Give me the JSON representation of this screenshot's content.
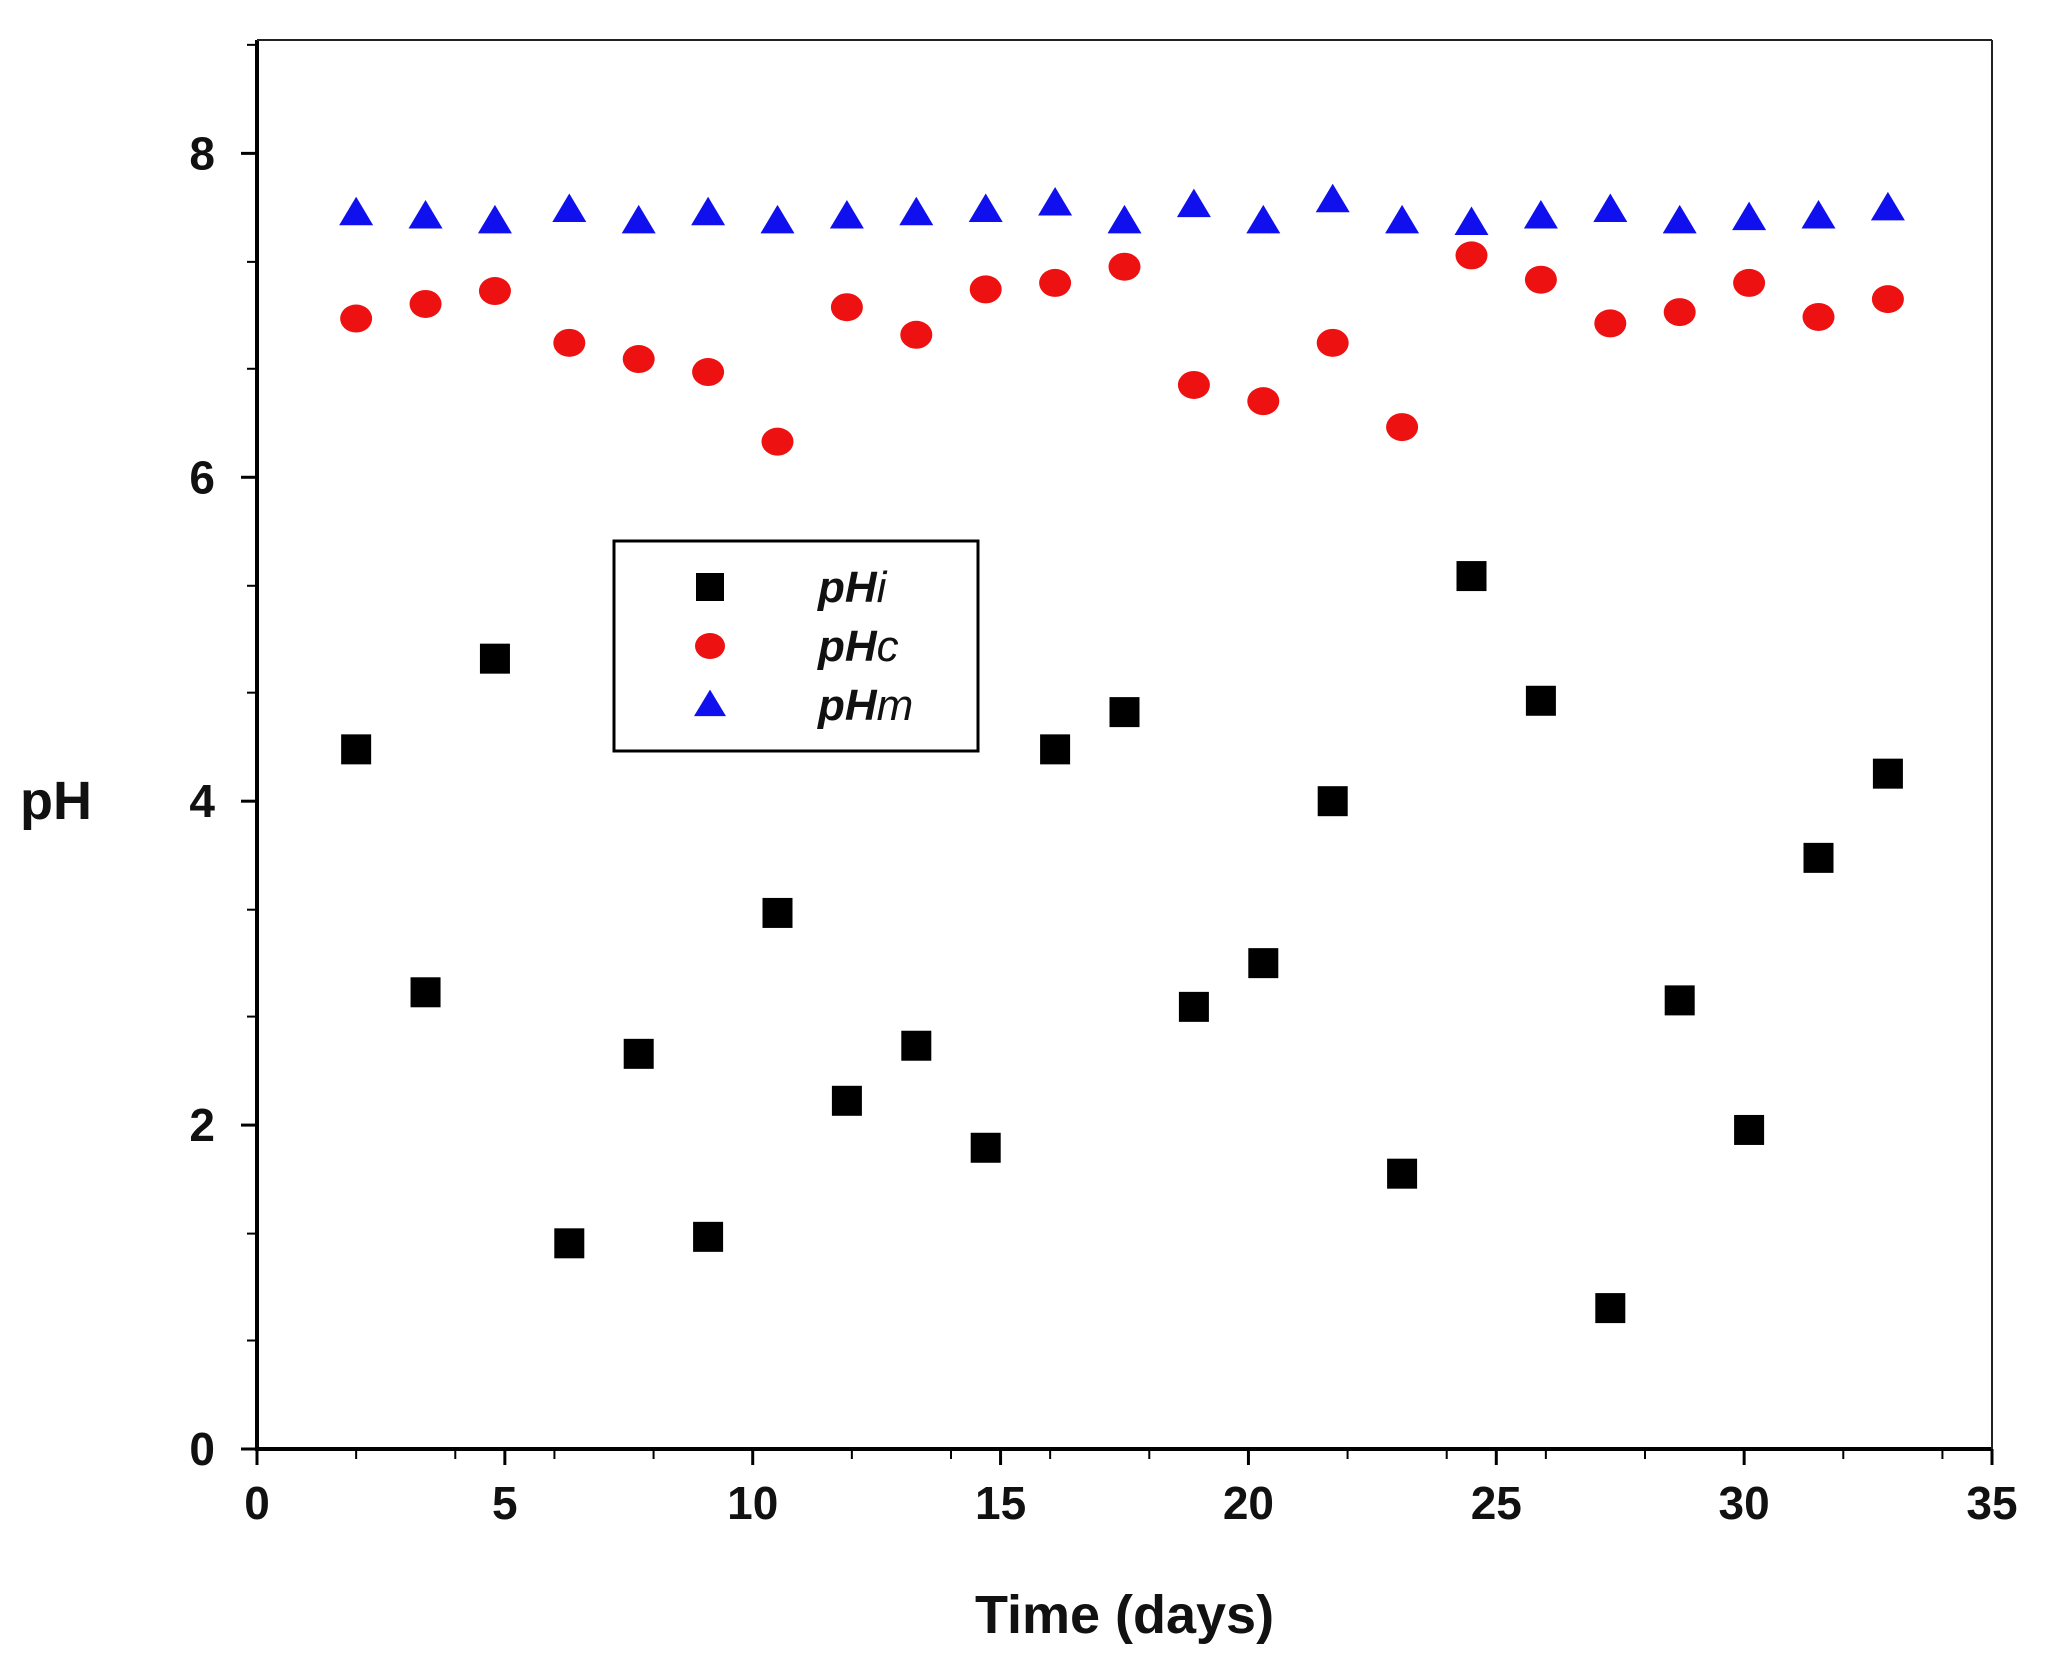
{
  "chart_data": {
    "type": "scatter",
    "title": "",
    "xlabel": "Time (days)",
    "ylabel": "pH",
    "xlim": [
      0,
      35
    ],
    "ylim": [
      0,
      8.7
    ],
    "xticks": [
      0,
      5,
      10,
      15,
      20,
      25,
      30,
      35
    ],
    "yticks": [
      0,
      2,
      4,
      6,
      8
    ],
    "x_minor_ticks": [
      2,
      4,
      6,
      8,
      10,
      12,
      14,
      16,
      18,
      20,
      22,
      24,
      26,
      28,
      30,
      32,
      34
    ],
    "y_minor_ticks": [
      0.67,
      1.33,
      2.67,
      3.33,
      4.67,
      5.33,
      6.67,
      7.33,
      8.67
    ],
    "grid": false,
    "legend_position": "center-left",
    "series": [
      {
        "name": "pHi",
        "name_main": "pH",
        "name_sub": "i",
        "marker": "square",
        "color": "#000000",
        "x": [
          2.0,
          3.4,
          4.8,
          6.3,
          7.7,
          9.1,
          10.5,
          11.9,
          13.3,
          14.7,
          16.1,
          17.5,
          18.9,
          20.3,
          21.7,
          23.1,
          24.5,
          25.9,
          27.3,
          28.7,
          30.1,
          31.5,
          32.9
        ],
        "values": [
          4.32,
          2.82,
          4.88,
          1.27,
          2.44,
          1.31,
          3.31,
          2.15,
          2.49,
          1.86,
          4.32,
          4.55,
          2.73,
          3.0,
          4.0,
          1.7,
          5.39,
          4.62,
          0.87,
          2.77,
          1.97,
          3.65,
          4.17
        ]
      },
      {
        "name": "pHc",
        "name_main": "pH",
        "name_sub": "c",
        "marker": "circle",
        "color": "#ee1111",
        "x": [
          2.0,
          3.4,
          4.8,
          6.3,
          7.7,
          9.1,
          10.5,
          11.9,
          13.3,
          14.7,
          16.1,
          17.5,
          18.9,
          20.3,
          21.7,
          23.1,
          24.5,
          25.9,
          27.3,
          28.7,
          30.1,
          31.5,
          32.9
        ],
        "values": [
          6.98,
          7.07,
          7.15,
          6.83,
          6.73,
          6.65,
          6.22,
          7.05,
          6.88,
          7.16,
          7.2,
          7.3,
          6.57,
          6.47,
          6.83,
          6.31,
          7.37,
          7.22,
          6.95,
          7.02,
          7.2,
          6.99,
          7.1
        ]
      },
      {
        "name": "pHm",
        "name_main": "pH",
        "name_sub": "m",
        "marker": "triangle",
        "color": "#1010ee",
        "x": [
          2.0,
          3.4,
          4.8,
          6.3,
          7.7,
          9.1,
          10.5,
          11.9,
          13.3,
          14.7,
          16.1,
          17.5,
          18.9,
          20.3,
          21.7,
          23.1,
          24.5,
          25.9,
          27.3,
          28.7,
          30.1,
          31.5,
          32.9
        ],
        "values": [
          7.63,
          7.61,
          7.58,
          7.65,
          7.58,
          7.63,
          7.58,
          7.61,
          7.63,
          7.65,
          7.69,
          7.58,
          7.68,
          7.58,
          7.71,
          7.58,
          7.57,
          7.61,
          7.65,
          7.58,
          7.6,
          7.61,
          7.66
        ]
      }
    ]
  }
}
